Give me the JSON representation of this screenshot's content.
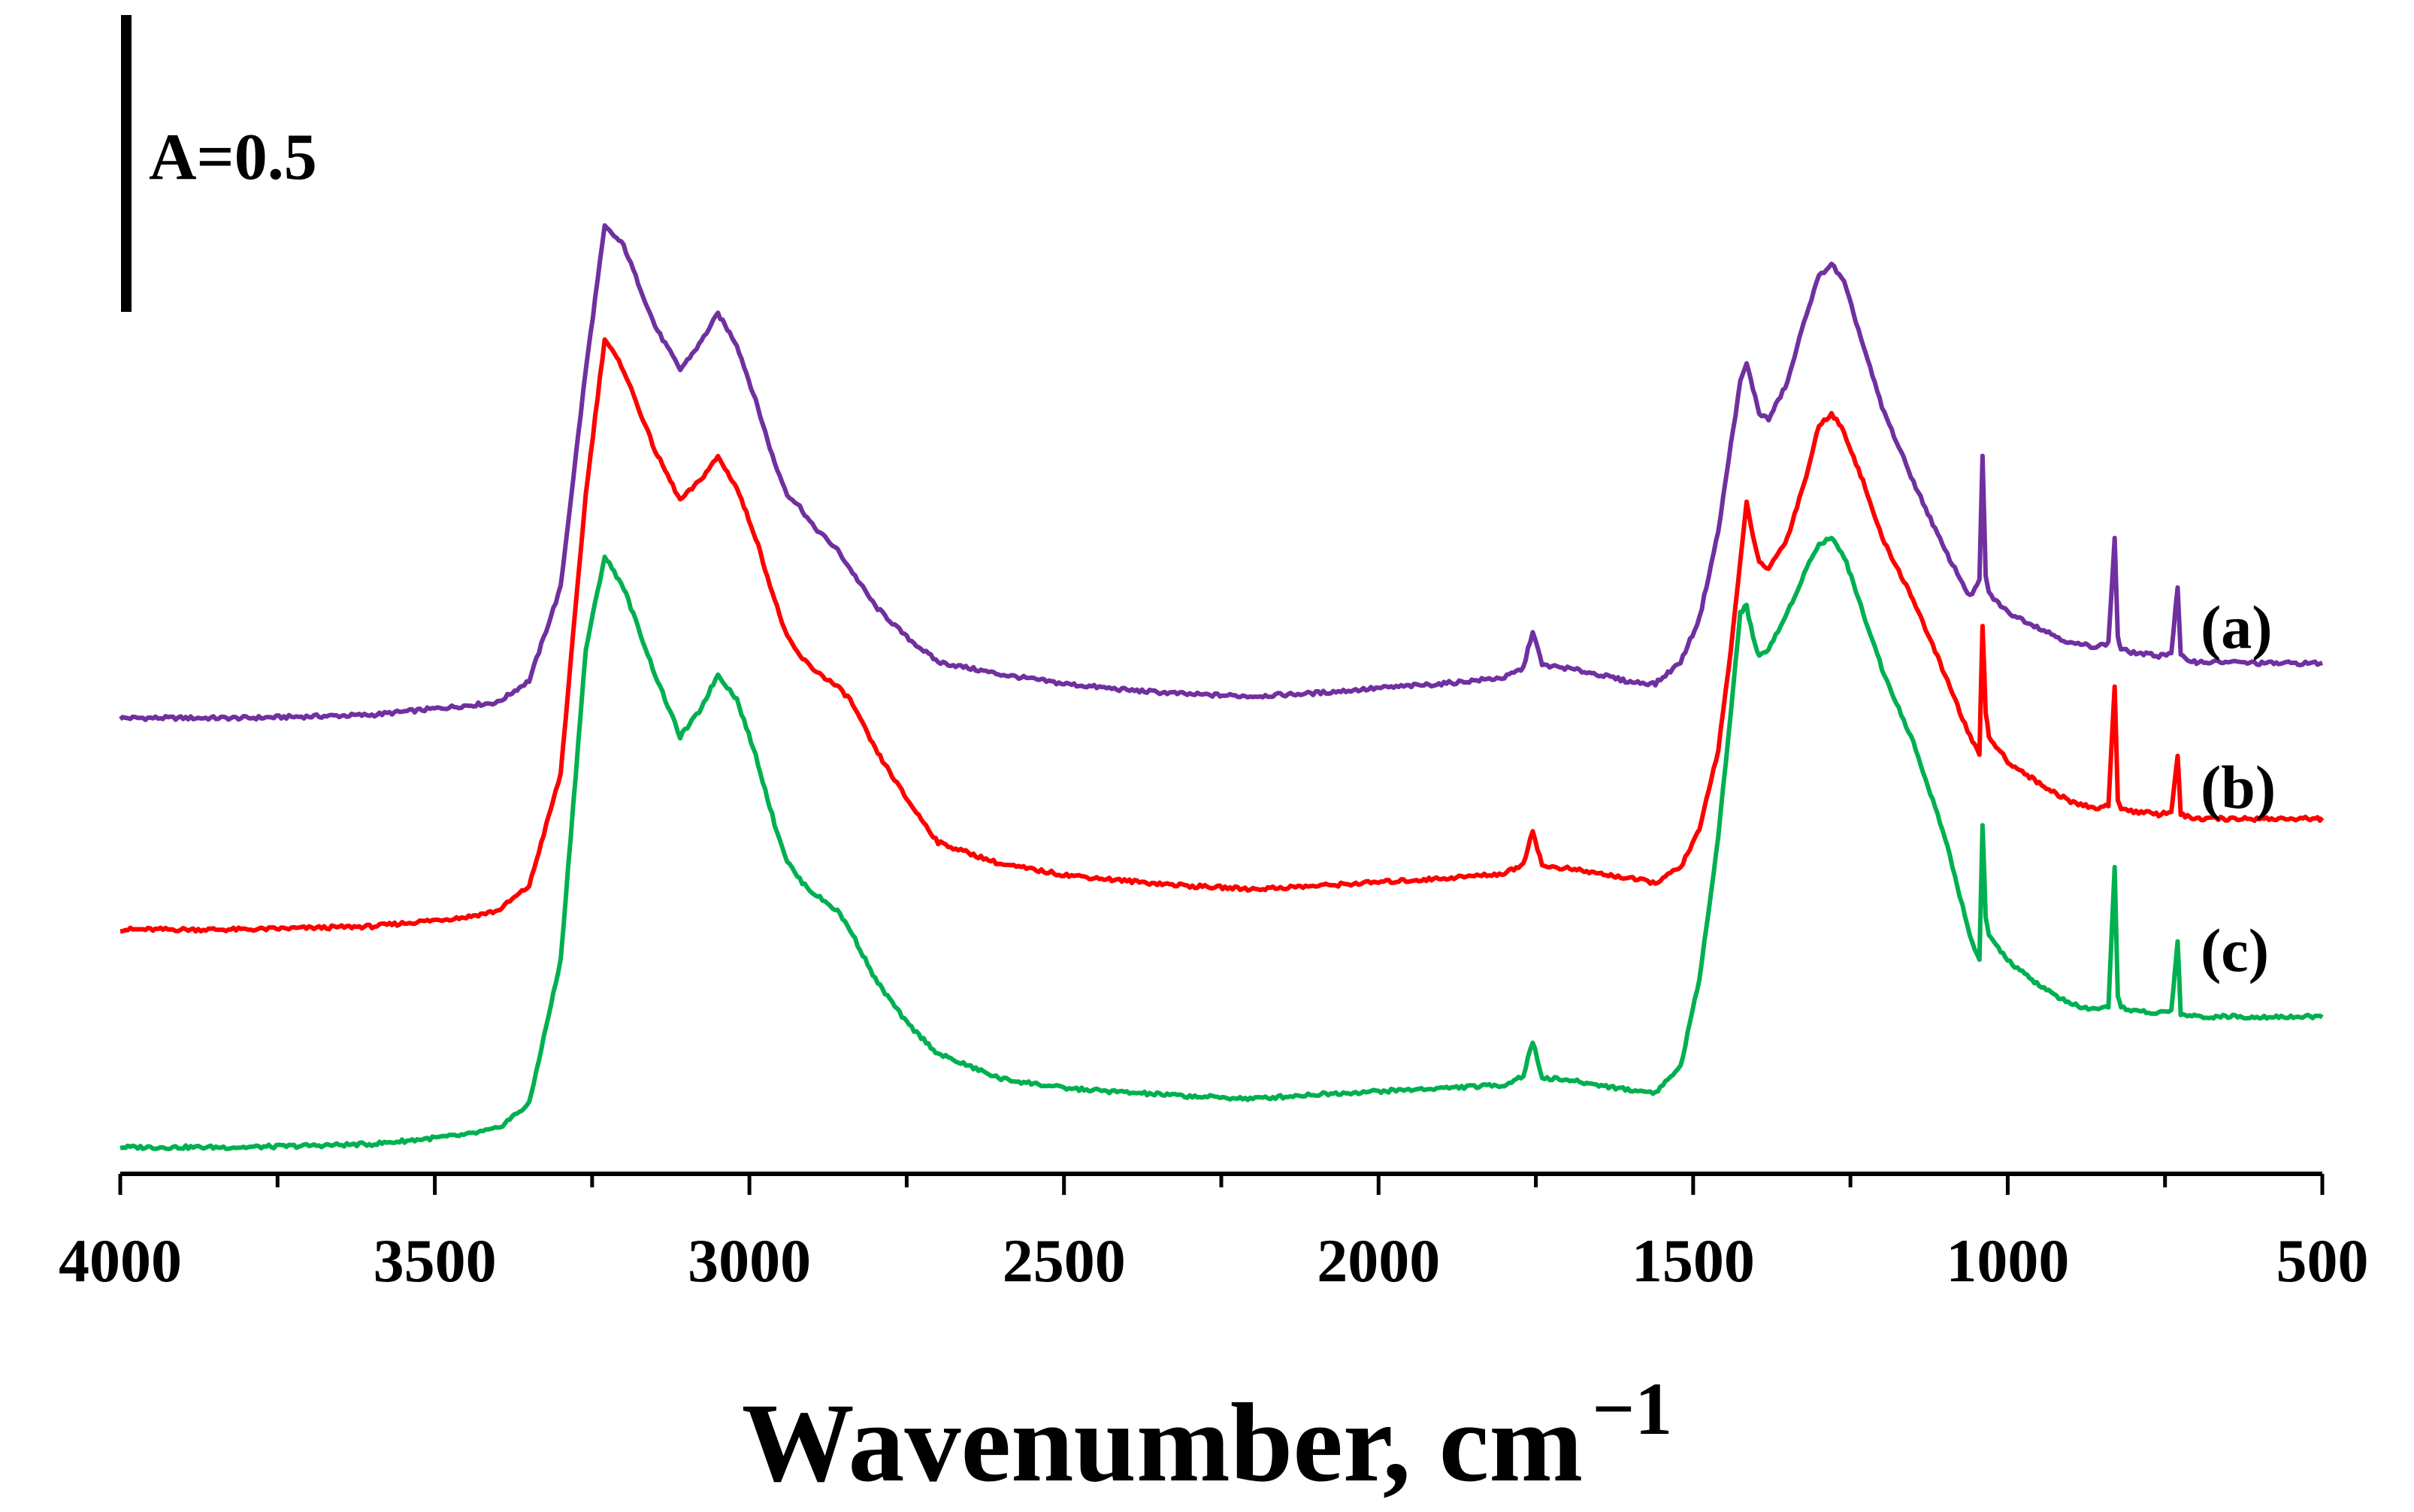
{
  "chart_data": {
    "type": "line",
    "title": "",
    "xlabel": "Wavenumber, cm",
    "xlabel_superscript": "−1",
    "ylabel": "",
    "xlim": [
      4000,
      500
    ],
    "x_reversed": true,
    "x_ticks": [
      4000,
      3500,
      3000,
      2500,
      2000,
      1500,
      1000,
      500
    ],
    "x_ticks_labels": [
      "4000",
      "3500",
      "3000",
      "2500",
      "2000",
      "1500",
      "1000",
      "500"
    ],
    "ylim": [
      -0.05,
      1.75
    ],
    "y_visible": false,
    "grid": false,
    "scale_bar": {
      "label": "A=0.5",
      "value": 0.5
    },
    "series": [
      {
        "name": "(a)",
        "color": "#7030A0",
        "x": [
          4000,
          3800,
          3600,
          3500,
          3450,
          3400,
          3350,
          3300,
          3260,
          3230,
          3200,
          3150,
          3110,
          3080,
          3050,
          3020,
          2990,
          2960,
          2940,
          2920,
          2900,
          2880,
          2860,
          2840,
          2800,
          2750,
          2700,
          2600,
          2500,
          2400,
          2300,
          2200,
          2100,
          2000,
          1900,
          1800,
          1770,
          1755,
          1740,
          1700,
          1650,
          1600,
          1560,
          1520,
          1490,
          1460,
          1440,
          1425,
          1415,
          1405,
          1395,
          1380,
          1350,
          1320,
          1300,
          1280,
          1260,
          1230,
          1200,
          1150,
          1100,
          1060,
          1045,
          1040,
          1035,
          1030,
          1000,
          950,
          900,
          860,
          840,
          830,
          825,
          820,
          800,
          760,
          740,
          730,
          725,
          718,
          700,
          650,
          600,
          550,
          500
        ],
        "y": [
          0.69,
          0.69,
          0.695,
          0.705,
          0.71,
          0.715,
          0.75,
          0.9,
          1.25,
          1.48,
          1.45,
          1.32,
          1.25,
          1.29,
          1.34,
          1.29,
          1.2,
          1.1,
          1.05,
          1.03,
          1.0,
          0.98,
          0.96,
          0.93,
          0.87,
          0.82,
          0.78,
          0.76,
          0.745,
          0.735,
          0.728,
          0.725,
          0.73,
          0.738,
          0.745,
          0.755,
          0.77,
          0.83,
          0.775,
          0.77,
          0.76,
          0.748,
          0.745,
          0.78,
          0.85,
          0.99,
          1.13,
          1.23,
          1.26,
          1.22,
          1.18,
          1.17,
          1.23,
          1.34,
          1.4,
          1.42,
          1.39,
          1.29,
          1.19,
          1.07,
          0.96,
          0.885,
          0.91,
          1.11,
          0.92,
          0.89,
          0.86,
          0.835,
          0.81,
          0.805,
          0.81,
          0.98,
          0.82,
          0.8,
          0.795,
          0.79,
          0.795,
          0.9,
          0.79,
          0.785,
          0.78,
          0.78,
          0.778,
          0.778,
          0.778
        ]
      },
      {
        "name": "(b)",
        "color": "#FF0000",
        "x": [
          4000,
          3800,
          3600,
          3500,
          3450,
          3400,
          3350,
          3300,
          3260,
          3230,
          3200,
          3150,
          3110,
          3080,
          3050,
          3020,
          2990,
          2960,
          2940,
          2920,
          2900,
          2880,
          2860,
          2840,
          2800,
          2750,
          2700,
          2600,
          2500,
          2400,
          2300,
          2200,
          2100,
          2000,
          1900,
          1800,
          1770,
          1755,
          1740,
          1700,
          1650,
          1600,
          1560,
          1520,
          1490,
          1460,
          1440,
          1425,
          1415,
          1405,
          1395,
          1380,
          1350,
          1320,
          1300,
          1280,
          1260,
          1230,
          1200,
          1150,
          1100,
          1060,
          1045,
          1040,
          1035,
          1030,
          1000,
          950,
          900,
          860,
          840,
          830,
          825,
          820,
          800,
          760,
          740,
          730,
          725,
          718,
          700,
          650,
          600,
          550,
          500
        ],
        "y": [
          0.35,
          0.35,
          0.355,
          0.365,
          0.37,
          0.38,
          0.42,
          0.6,
          1.05,
          1.3,
          1.25,
          1.12,
          1.04,
          1.07,
          1.11,
          1.06,
          0.98,
          0.88,
          0.82,
          0.79,
          0.77,
          0.755,
          0.74,
          0.72,
          0.64,
          0.56,
          0.49,
          0.455,
          0.438,
          0.428,
          0.42,
          0.415,
          0.42,
          0.426,
          0.432,
          0.44,
          0.455,
          0.51,
          0.452,
          0.448,
          0.44,
          0.432,
          0.425,
          0.45,
          0.51,
          0.64,
          0.8,
          0.94,
          1.04,
          0.98,
          0.94,
          0.93,
          0.98,
          1.08,
          1.16,
          1.18,
          1.15,
          1.07,
          0.98,
          0.88,
          0.76,
          0.66,
          0.63,
          0.84,
          0.7,
          0.66,
          0.62,
          0.585,
          0.555,
          0.545,
          0.55,
          0.74,
          0.56,
          0.545,
          0.54,
          0.535,
          0.54,
          0.63,
          0.535,
          0.532,
          0.528,
          0.528,
          0.528,
          0.528,
          0.528
        ]
      },
      {
        "name": "(c)",
        "color": "#00B050",
        "x": [
          4000,
          3800,
          3600,
          3500,
          3450,
          3400,
          3350,
          3300,
          3260,
          3230,
          3200,
          3150,
          3110,
          3080,
          3050,
          3020,
          2990,
          2960,
          2940,
          2920,
          2900,
          2880,
          2860,
          2840,
          2800,
          2750,
          2700,
          2600,
          2500,
          2400,
          2300,
          2200,
          2100,
          2000,
          1900,
          1800,
          1770,
          1755,
          1740,
          1700,
          1650,
          1600,
          1560,
          1520,
          1490,
          1460,
          1440,
          1425,
          1415,
          1405,
          1395,
          1380,
          1350,
          1320,
          1300,
          1280,
          1260,
          1230,
          1200,
          1150,
          1100,
          1060,
          1045,
          1040,
          1035,
          1030,
          1000,
          950,
          900,
          860,
          840,
          830,
          825,
          820,
          800,
          760,
          740,
          730,
          725,
          718,
          700,
          650,
          600,
          550,
          500
        ],
        "y": [
          0.0,
          0.0,
          0.005,
          0.015,
          0.02,
          0.03,
          0.07,
          0.3,
          0.8,
          0.95,
          0.9,
          0.76,
          0.66,
          0.7,
          0.76,
          0.72,
          0.63,
          0.52,
          0.46,
          0.43,
          0.41,
          0.395,
          0.38,
          0.35,
          0.27,
          0.2,
          0.15,
          0.11,
          0.095,
          0.088,
          0.082,
          0.078,
          0.085,
          0.09,
          0.095,
          0.1,
          0.115,
          0.17,
          0.112,
          0.108,
          0.1,
          0.092,
          0.088,
          0.13,
          0.27,
          0.5,
          0.7,
          0.86,
          0.87,
          0.82,
          0.79,
          0.8,
          0.86,
          0.93,
          0.97,
          0.98,
          0.95,
          0.86,
          0.77,
          0.65,
          0.5,
          0.34,
          0.3,
          0.52,
          0.37,
          0.34,
          0.3,
          0.26,
          0.23,
          0.22,
          0.225,
          0.45,
          0.24,
          0.225,
          0.22,
          0.215,
          0.22,
          0.33,
          0.215,
          0.212,
          0.21,
          0.21,
          0.21,
          0.21,
          0.21
        ]
      }
    ]
  }
}
